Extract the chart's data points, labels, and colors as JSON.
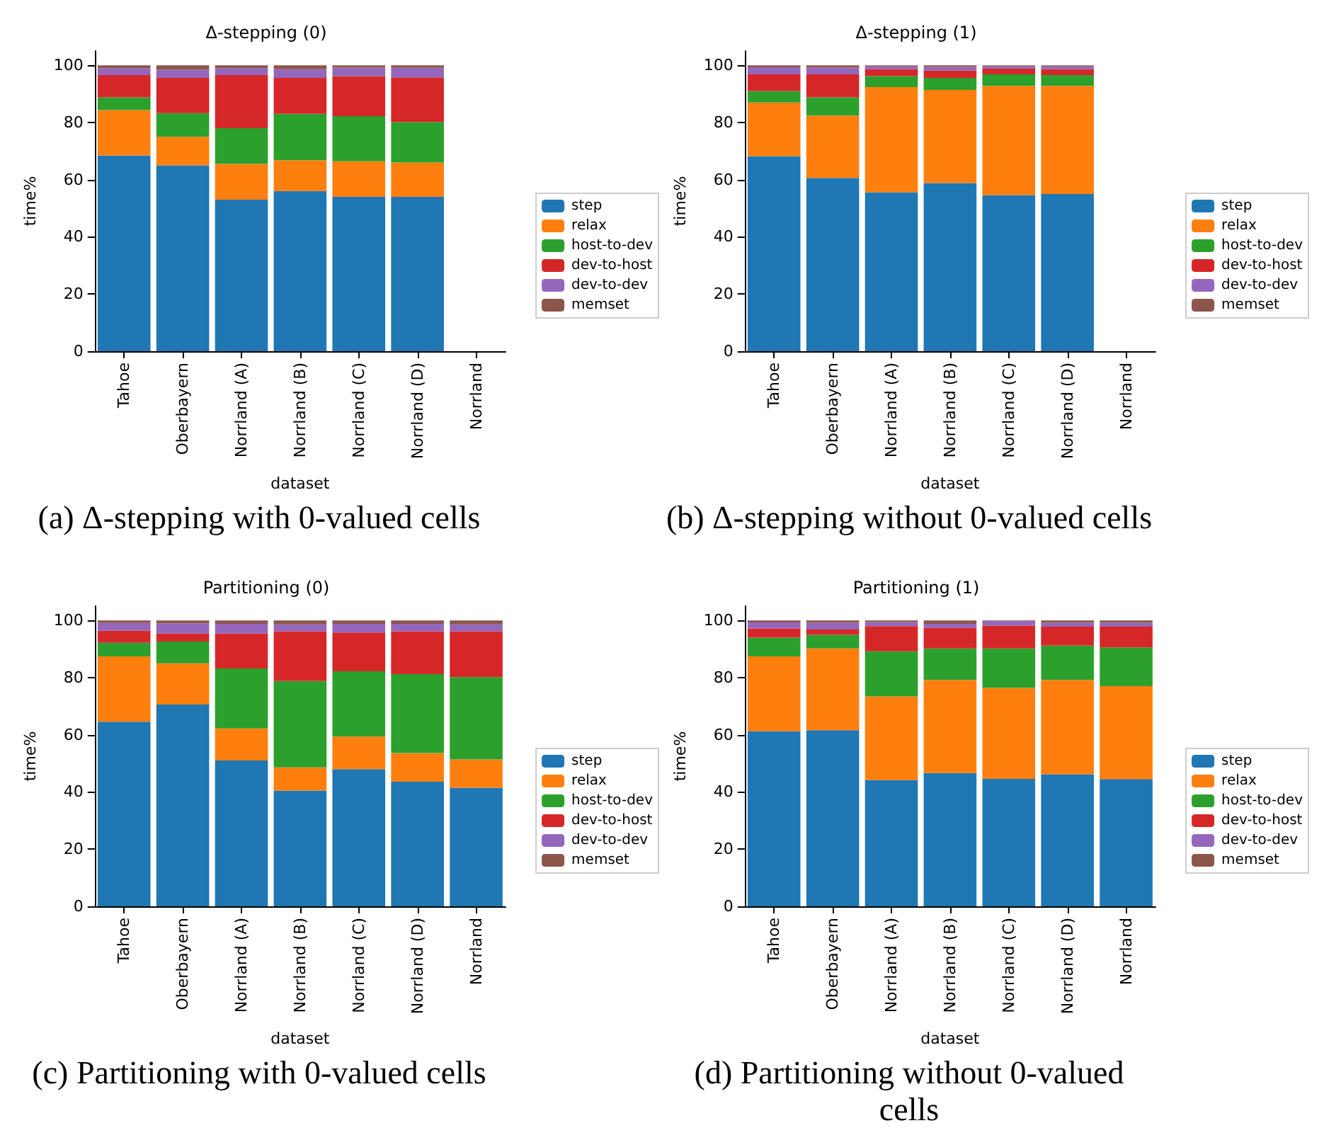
{
  "chart_data": [
    {
      "type": "bar",
      "stacked": true,
      "title": "Δ-stepping (0)",
      "xlabel": "dataset",
      "ylabel": "time%",
      "annotations": [
        "(a) Δ-stepping with 0-valued cells"
      ],
      "categories": [
        "Tahoe",
        "Oberbayern",
        "Norrland (A)",
        "Norrland (B)",
        "Norrland (C)",
        "Norrland (D)",
        "Norrland"
      ],
      "ylim": [
        0,
        105
      ],
      "yticks": [
        0,
        20,
        40,
        60,
        80,
        100
      ],
      "grid": false,
      "legend": "right",
      "series": [
        {
          "name": "step",
          "color": "#1f77b4",
          "values": [
            68.5,
            65,
            53,
            56,
            54,
            54,
            null
          ]
        },
        {
          "name": "relax",
          "color": "#ff7f0e",
          "values": [
            15.8,
            10,
            12.5,
            10.8,
            12.4,
            12,
            null
          ]
        },
        {
          "name": "host-to-dev",
          "color": "#2ca02c",
          "values": [
            4.5,
            8.3,
            12.5,
            16.2,
            15.8,
            14.2,
            null
          ]
        },
        {
          "name": "dev-to-host",
          "color": "#d62728",
          "values": [
            7.8,
            12.3,
            18.6,
            12.6,
            14,
            15.6,
            null
          ]
        },
        {
          "name": "dev-to-dev",
          "color": "#9467bd",
          "values": [
            2.4,
            2.9,
            2.4,
            3,
            3,
            3.3,
            null
          ]
        },
        {
          "name": "memset",
          "color": "#8c564b",
          "values": [
            1,
            1.5,
            1,
            1.4,
            0.8,
            0.9,
            null
          ]
        }
      ]
    },
    {
      "type": "bar",
      "stacked": true,
      "title": "Δ-stepping (1)",
      "xlabel": "dataset",
      "ylabel": "time%",
      "annotations": [
        "(b) Δ-stepping without 0-valued cells"
      ],
      "categories": [
        "Tahoe",
        "Oberbayern",
        "Norrland (A)",
        "Norrland (B)",
        "Norrland (C)",
        "Norrland (D)",
        "Norrland"
      ],
      "ylim": [
        0,
        105
      ],
      "yticks": [
        0,
        20,
        40,
        60,
        80,
        100
      ],
      "grid": false,
      "legend": "right",
      "series": [
        {
          "name": "step",
          "color": "#1f77b4",
          "values": [
            68.2,
            60.6,
            55.6,
            58.8,
            54.6,
            55,
            null
          ]
        },
        {
          "name": "relax",
          "color": "#ff7f0e",
          "values": [
            18.8,
            21.8,
            36.8,
            32.6,
            38.2,
            37.8,
            null
          ]
        },
        {
          "name": "host-to-dev",
          "color": "#2ca02c",
          "values": [
            4,
            6.4,
            3.8,
            4.2,
            4,
            3.8,
            null
          ]
        },
        {
          "name": "dev-to-host",
          "color": "#d62728",
          "values": [
            5.8,
            8,
            2.4,
            2.6,
            2,
            2,
            null
          ]
        },
        {
          "name": "dev-to-dev",
          "color": "#9467bd",
          "values": [
            2.5,
            2.4,
            1,
            1.2,
            0.8,
            1,
            null
          ]
        },
        {
          "name": "memset",
          "color": "#8c564b",
          "values": [
            0.7,
            0.8,
            0.4,
            0.6,
            0.4,
            0.4,
            null
          ]
        }
      ]
    },
    {
      "type": "bar",
      "stacked": true,
      "title": "Partitioning (0)",
      "xlabel": "dataset",
      "ylabel": "time%",
      "annotations": [
        "(c) Partitioning with 0-valued cells"
      ],
      "categories": [
        "Tahoe",
        "Oberbayern",
        "Norrland (A)",
        "Norrland (B)",
        "Norrland (C)",
        "Norrland (D)",
        "Norrland"
      ],
      "ylim": [
        0,
        105
      ],
      "yticks": [
        0,
        20,
        40,
        60,
        80,
        100
      ],
      "grid": false,
      "legend": "right",
      "series": [
        {
          "name": "step",
          "color": "#1f77b4",
          "values": [
            64.6,
            70.6,
            51,
            40.5,
            48,
            43.6,
            41.5
          ]
        },
        {
          "name": "relax",
          "color": "#ff7f0e",
          "values": [
            22.8,
            14.4,
            11.2,
            8.1,
            11.4,
            10,
            9.9
          ]
        },
        {
          "name": "host-to-dev",
          "color": "#2ca02c",
          "values": [
            4.8,
            7.6,
            21,
            30.2,
            22.8,
            27.6,
            28.8
          ]
        },
        {
          "name": "dev-to-host",
          "color": "#d62728",
          "values": [
            4.2,
            2.8,
            12.2,
            17.4,
            13.6,
            15,
            16
          ]
        },
        {
          "name": "dev-to-dev",
          "color": "#9467bd",
          "values": [
            2.7,
            3.6,
            3.4,
            2.4,
            3,
            2.6,
            2.4
          ]
        },
        {
          "name": "memset",
          "color": "#8c564b",
          "values": [
            0.9,
            1,
            1.2,
            1.4,
            1.2,
            1.2,
            1.4
          ]
        }
      ]
    },
    {
      "type": "bar",
      "stacked": true,
      "title": "Partitioning (1)",
      "xlabel": "dataset",
      "ylabel": "time%",
      "annotations": [
        "(d) Partitioning without 0-valued cells"
      ],
      "categories": [
        "Tahoe",
        "Oberbayern",
        "Norrland (A)",
        "Norrland (B)",
        "Norrland (C)",
        "Norrland (D)",
        "Norrland"
      ],
      "ylim": [
        0,
        105
      ],
      "yticks": [
        0,
        20,
        40,
        60,
        80,
        100
      ],
      "grid": false,
      "legend": "right",
      "series": [
        {
          "name": "step",
          "color": "#1f77b4",
          "values": [
            61.2,
            61.6,
            44.2,
            46.6,
            44.6,
            46.2,
            44.5
          ]
        },
        {
          "name": "relax",
          "color": "#ff7f0e",
          "values": [
            26.2,
            28.6,
            29.2,
            32.6,
            31.8,
            33,
            32.5
          ]
        },
        {
          "name": "host-to-dev",
          "color": "#2ca02c",
          "values": [
            6.6,
            4.8,
            15.8,
            11,
            13.8,
            12,
            13.6
          ]
        },
        {
          "name": "dev-to-host",
          "color": "#d62728",
          "values": [
            3.2,
            1.8,
            8.8,
            7.2,
            8,
            6.6,
            7.2
          ]
        },
        {
          "name": "dev-to-dev",
          "color": "#9467bd",
          "values": [
            2.1,
            2.4,
            1.4,
            1.4,
            1.6,
            1.4,
            1.4
          ]
        },
        {
          "name": "memset",
          "color": "#8c564b",
          "values": [
            0.7,
            0.8,
            0.6,
            1.2,
            0.2,
            0.8,
            0.8
          ]
        }
      ]
    }
  ]
}
